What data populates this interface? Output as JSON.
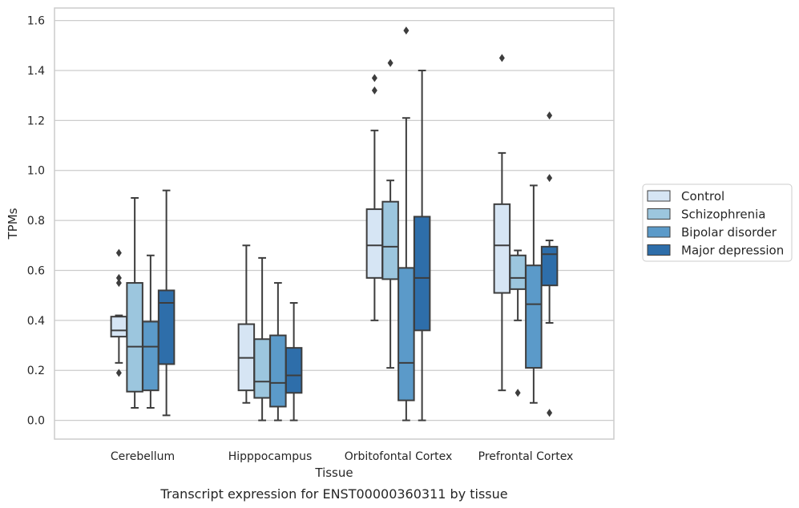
{
  "chart_data": {
    "type": "box",
    "title": "Transcript expression for ENST00000360311 by tissue",
    "xlabel": "Tissue",
    "ylabel": "TPMs",
    "ylim": [
      -0.075,
      1.65
    ],
    "yticks": [
      "0.0",
      "0.2",
      "0.4",
      "0.6",
      "0.8",
      "1.0",
      "1.2",
      "1.4",
      "1.6"
    ],
    "grid": "horizontal",
    "legend_position": "right",
    "categories": [
      "Cerebellum",
      "Hipppocampus",
      "Orbitofontal Cortex",
      "Prefrontal Cortex"
    ],
    "series": [
      {
        "name": "Control",
        "color": "#d6e5f4",
        "boxes": [
          {
            "whisker_low": 0.23,
            "q1": 0.335,
            "median": 0.36,
            "q3": 0.415,
            "whisker_high": 0.42,
            "outliers": [
              0.19,
              0.55,
              0.57,
              0.67
            ]
          },
          {
            "whisker_low": 0.07,
            "q1": 0.12,
            "median": 0.25,
            "q3": 0.385,
            "whisker_high": 0.7,
            "outliers": []
          },
          {
            "whisker_low": 0.4,
            "q1": 0.57,
            "median": 0.7,
            "q3": 0.845,
            "whisker_high": 1.16,
            "outliers": [
              1.32,
              1.37
            ]
          },
          {
            "whisker_low": 0.12,
            "q1": 0.51,
            "median": 0.7,
            "q3": 0.865,
            "whisker_high": 1.07,
            "outliers": [
              1.45
            ]
          }
        ]
      },
      {
        "name": "Schizophrenia",
        "color": "#9cc6de",
        "boxes": [
          {
            "whisker_low": 0.05,
            "q1": 0.115,
            "median": 0.295,
            "q3": 0.55,
            "whisker_high": 0.89,
            "outliers": []
          },
          {
            "whisker_low": 0.0,
            "q1": 0.09,
            "median": 0.155,
            "q3": 0.325,
            "whisker_high": 0.65,
            "outliers": []
          },
          {
            "whisker_low": 0.21,
            "q1": 0.565,
            "median": 0.695,
            "q3": 0.875,
            "whisker_high": 0.96,
            "outliers": [
              1.43
            ]
          },
          {
            "whisker_low": 0.4,
            "q1": 0.525,
            "median": 0.57,
            "q3": 0.66,
            "whisker_high": 0.68,
            "outliers": [
              0.11
            ]
          }
        ]
      },
      {
        "name": "Bipolar disorder",
        "color": "#5b9ac9",
        "boxes": [
          {
            "whisker_low": 0.05,
            "q1": 0.12,
            "median": 0.295,
            "q3": 0.395,
            "whisker_high": 0.66,
            "outliers": []
          },
          {
            "whisker_low": 0.0,
            "q1": 0.055,
            "median": 0.15,
            "q3": 0.34,
            "whisker_high": 0.55,
            "outliers": []
          },
          {
            "whisker_low": 0.0,
            "q1": 0.08,
            "median": 0.23,
            "q3": 0.61,
            "whisker_high": 1.21,
            "outliers": [
              1.56
            ]
          },
          {
            "whisker_low": 0.07,
            "q1": 0.21,
            "median": 0.465,
            "q3": 0.62,
            "whisker_high": 0.94,
            "outliers": []
          }
        ]
      },
      {
        "name": "Major depression",
        "color": "#2e6eaa",
        "boxes": [
          {
            "whisker_low": 0.02,
            "q1": 0.225,
            "median": 0.47,
            "q3": 0.52,
            "whisker_high": 0.92,
            "outliers": []
          },
          {
            "whisker_low": 0.0,
            "q1": 0.11,
            "median": 0.18,
            "q3": 0.29,
            "whisker_high": 0.47,
            "outliers": []
          },
          {
            "whisker_low": 0.0,
            "q1": 0.36,
            "median": 0.57,
            "q3": 0.815,
            "whisker_high": 1.4,
            "outliers": []
          },
          {
            "whisker_low": 0.39,
            "q1": 0.54,
            "median": 0.665,
            "q3": 0.695,
            "whisker_high": 0.72,
            "outliers": [
              0.03,
              0.97,
              1.22
            ]
          }
        ]
      }
    ]
  }
}
